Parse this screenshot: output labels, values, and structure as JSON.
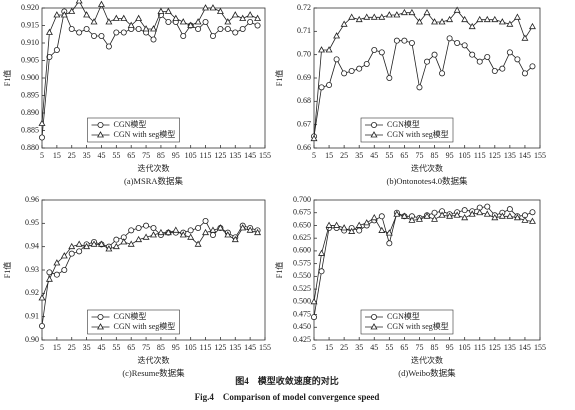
{
  "chart_data": [
    {
      "type": "line",
      "caption": "(a)MSRA数据集",
      "xlabel": "迭代次数",
      "ylabel": "F1值",
      "legend": "lower center",
      "x": [
        5,
        10,
        15,
        20,
        25,
        30,
        35,
        40,
        45,
        50,
        55,
        60,
        65,
        70,
        75,
        80,
        85,
        90,
        95,
        100,
        105,
        110,
        115,
        120,
        125,
        130,
        135,
        140,
        145,
        150
      ],
      "xlim": [
        5,
        155
      ],
      "xticks": [
        5,
        15,
        25,
        35,
        45,
        55,
        65,
        75,
        85,
        95,
        105,
        115,
        125,
        135,
        145,
        155
      ],
      "ylim": [
        0.88,
        0.92
      ],
      "yticks": [
        {
          "value": 0.88,
          "label": "0.880"
        },
        0.885,
        {
          "value": 0.89,
          "label": "0.890"
        },
        0.895,
        {
          "value": 0.9,
          "label": "0.900"
        },
        0.905,
        {
          "value": 0.91,
          "label": "0.910"
        },
        0.915,
        {
          "value": 0.92,
          "label": "0.920"
        }
      ],
      "series": [
        {
          "name": "CGN模型",
          "color": "#222222",
          "marker": "circle",
          "values": [
            0.883,
            0.906,
            0.908,
            0.919,
            0.914,
            0.913,
            0.914,
            0.912,
            0.912,
            0.909,
            0.913,
            0.913,
            0.914,
            0.914,
            0.913,
            0.911,
            0.918,
            0.916,
            0.916,
            0.912,
            0.915,
            0.914,
            0.916,
            0.912,
            0.914,
            0.914,
            0.913,
            0.914,
            0.916,
            0.915
          ]
        },
        {
          "name": "CGN with seg模型",
          "color": "#222222",
          "marker": "triangle",
          "values": [
            0.887,
            0.913,
            0.918,
            0.918,
            0.919,
            0.922,
            0.918,
            0.916,
            0.921,
            0.916,
            0.917,
            0.917,
            0.915,
            0.917,
            0.914,
            0.914,
            0.919,
            0.919,
            0.917,
            0.916,
            0.915,
            0.916,
            0.92,
            0.92,
            0.919,
            0.916,
            0.918,
            0.917,
            0.918,
            0.917
          ]
        }
      ]
    },
    {
      "type": "line",
      "caption": "(b)Ontonotes4.0数据集",
      "xlabel": "迭代次数",
      "ylabel": "F1值",
      "legend": "lower center",
      "x": [
        5,
        10,
        15,
        20,
        25,
        30,
        35,
        40,
        45,
        50,
        55,
        60,
        65,
        70,
        75,
        80,
        85,
        90,
        95,
        100,
        105,
        110,
        115,
        120,
        125,
        130,
        135,
        140,
        145,
        150
      ],
      "xlim": [
        5,
        155
      ],
      "xticks": [
        5,
        15,
        25,
        35,
        45,
        55,
        65,
        75,
        85,
        95,
        105,
        115,
        125,
        135,
        145,
        155
      ],
      "ylim": [
        0.66,
        0.72
      ],
      "yticks": [
        0.66,
        0.67,
        0.68,
        0.69,
        {
          "value": 0.7,
          "label": "0.70"
        },
        0.71,
        0.72
      ],
      "series": [
        {
          "name": "CGN模型",
          "color": "#222222",
          "marker": "circle",
          "values": [
            0.665,
            0.686,
            0.687,
            0.698,
            0.692,
            0.693,
            0.694,
            0.696,
            0.702,
            0.701,
            0.69,
            0.706,
            0.706,
            0.705,
            0.686,
            0.697,
            0.7,
            0.692,
            0.707,
            0.705,
            0.704,
            0.7,
            0.697,
            0.699,
            0.693,
            0.694,
            0.701,
            0.698,
            0.692,
            0.695
          ]
        },
        {
          "name": "CGN with seg模型",
          "color": "#222222",
          "marker": "triangle",
          "values": [
            0.664,
            0.702,
            0.702,
            0.708,
            0.713,
            0.716,
            0.715,
            0.716,
            0.716,
            0.716,
            0.717,
            0.717,
            0.718,
            0.718,
            0.714,
            0.718,
            0.714,
            0.714,
            0.715,
            0.719,
            0.715,
            0.712,
            0.715,
            0.715,
            0.715,
            0.714,
            0.713,
            0.716,
            0.707,
            0.712
          ]
        }
      ]
    },
    {
      "type": "line",
      "caption": "(c)Resume数据集",
      "xlabel": "迭代次数",
      "ylabel": "F1值",
      "legend": "lower center",
      "x": [
        5,
        10,
        15,
        20,
        25,
        30,
        35,
        40,
        45,
        50,
        55,
        60,
        65,
        70,
        75,
        80,
        85,
        90,
        95,
        100,
        105,
        110,
        115,
        120,
        125,
        130,
        135,
        140,
        145,
        150
      ],
      "xlim": [
        5,
        155
      ],
      "xticks": [
        5,
        15,
        25,
        35,
        45,
        55,
        65,
        75,
        85,
        95,
        105,
        115,
        125,
        135,
        145,
        155
      ],
      "ylim": [
        0.9,
        0.96
      ],
      "yticks": [
        {
          "value": 0.9,
          "label": "0.90"
        },
        0.91,
        0.92,
        0.93,
        0.94,
        0.95,
        0.96
      ],
      "series": [
        {
          "name": "CGN模型",
          "color": "#222222",
          "marker": "circle",
          "values": [
            0.906,
            0.929,
            0.928,
            0.93,
            0.937,
            0.938,
            0.941,
            0.942,
            0.941,
            0.94,
            0.943,
            0.944,
            0.947,
            0.948,
            0.949,
            0.948,
            0.945,
            0.946,
            0.946,
            0.946,
            0.947,
            0.948,
            0.951,
            0.945,
            0.948,
            0.946,
            0.944,
            0.949,
            0.948,
            0.947
          ]
        },
        {
          "name": "CGN with seg模型",
          "color": "#222222",
          "marker": "triangle",
          "values": [
            0.918,
            0.926,
            0.933,
            0.936,
            0.94,
            0.941,
            0.94,
            0.941,
            0.941,
            0.939,
            0.94,
            0.942,
            0.941,
            0.943,
            0.944,
            0.945,
            0.946,
            0.946,
            0.947,
            0.945,
            0.944,
            0.941,
            0.946,
            0.947,
            0.948,
            0.945,
            0.943,
            0.948,
            0.947,
            0.946
          ]
        }
      ]
    },
    {
      "type": "line",
      "caption": "(d)Weibo数据集",
      "xlabel": "迭代次数",
      "ylabel": "F1值",
      "legend": "lower center",
      "x": [
        5,
        10,
        15,
        20,
        25,
        30,
        35,
        40,
        45,
        50,
        55,
        60,
        65,
        70,
        75,
        80,
        85,
        90,
        95,
        100,
        105,
        110,
        115,
        120,
        125,
        130,
        135,
        140,
        145,
        150
      ],
      "xlim": [
        5,
        155
      ],
      "xticks": [
        5,
        15,
        25,
        35,
        45,
        55,
        65,
        75,
        85,
        95,
        105,
        115,
        125,
        135,
        145,
        155
      ],
      "ylim": [
        0.425,
        0.7
      ],
      "yticks": [
        0.425,
        {
          "value": 0.45,
          "label": "0.450"
        },
        0.475,
        {
          "value": 0.5,
          "label": "0.500"
        },
        0.525,
        {
          "value": 0.55,
          "label": "0.550"
        },
        0.575,
        {
          "value": 0.6,
          "label": "0.600"
        },
        0.625,
        {
          "value": 0.65,
          "label": "0.650"
        },
        0.675,
        {
          "value": 0.7,
          "label": "0.700"
        }
      ],
      "series": [
        {
          "name": "CGN模型",
          "color": "#222222",
          "marker": "circle",
          "values": [
            0.47,
            0.56,
            0.645,
            0.645,
            0.64,
            0.645,
            0.64,
            0.65,
            0.66,
            0.668,
            0.615,
            0.675,
            0.668,
            0.668,
            0.665,
            0.67,
            0.675,
            0.678,
            0.672,
            0.676,
            0.68,
            0.678,
            0.685,
            0.687,
            0.67,
            0.675,
            0.682,
            0.668,
            0.67,
            0.676
          ]
        },
        {
          "name": "CGN with seg模型",
          "color": "#222222",
          "marker": "triangle",
          "values": [
            0.5,
            0.595,
            0.65,
            0.65,
            0.645,
            0.638,
            0.65,
            0.655,
            0.665,
            0.64,
            0.635,
            0.672,
            0.668,
            0.66,
            0.662,
            0.668,
            0.662,
            0.67,
            0.668,
            0.67,
            0.665,
            0.672,
            0.675,
            0.672,
            0.665,
            0.668,
            0.668,
            0.665,
            0.66,
            0.658
          ]
        }
      ]
    }
  ],
  "figure_caption": {
    "zh": "图4　模型收敛速度的对比",
    "en": "Fig.4　Comparison of model convergence speed"
  }
}
